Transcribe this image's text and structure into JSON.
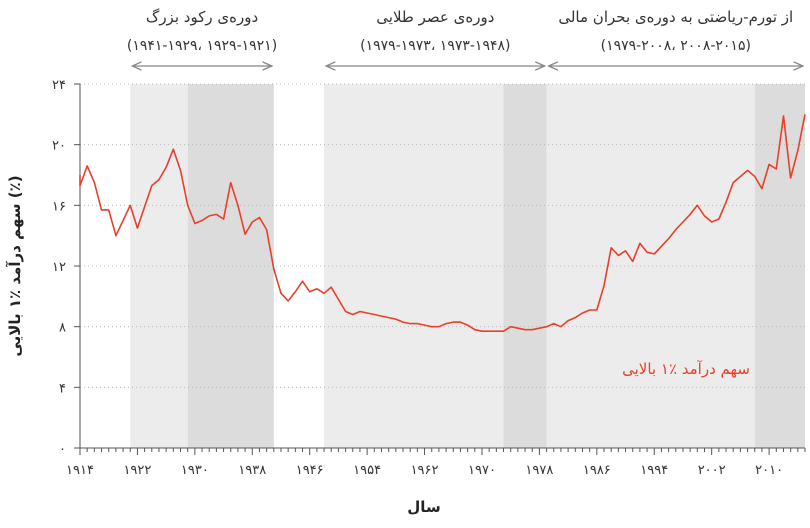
{
  "chart_data": {
    "type": "line",
    "xlabel": "سال",
    "ylabel": "سهم درآمد ٪۱ بالایی (٪)",
    "xlim": [
      1914,
      2015
    ],
    "ylim": [
      0,
      24
    ],
    "x_ticks": [
      1914,
      1922,
      1930,
      1938,
      1946,
      1954,
      1962,
      1970,
      1978,
      1986,
      1994,
      2002,
      2010
    ],
    "x_tick_labels": [
      "۱۹۱۴",
      "۱۹۲۲",
      "۱۹۳۰",
      "۱۹۳۸",
      "۱۹۴۶",
      "۱۹۵۴",
      "۱۹۶۲",
      "۱۹۷۰",
      "۱۹۷۸",
      "۱۹۸۶",
      "۱۹۹۴",
      "۲۰۰۲",
      "۲۰۱۰"
    ],
    "y_ticks": [
      0,
      4,
      8,
      12,
      16,
      20,
      24
    ],
    "y_tick_labels": [
      "۰",
      "۴",
      "۸",
      "۱۲",
      "۱۶",
      "۲۰",
      "۲۴"
    ],
    "grid": "horizontal",
    "shaded_periods": [
      {
        "from": 1921,
        "to": 1929,
        "shade": "light"
      },
      {
        "from": 1929,
        "to": 1941,
        "shade": "dark"
      },
      {
        "from": 1948,
        "to": 1973,
        "shade": "light"
      },
      {
        "from": 1973,
        "to": 1979,
        "shade": "dark"
      },
      {
        "from": 1979,
        "to": 2008,
        "shade": "light"
      },
      {
        "from": 2008,
        "to": 2015,
        "shade": "dark"
      }
    ],
    "periods": [
      {
        "title": "دوره‌ی رکود بزرگ",
        "range": "(۱۹۴۱-۱۹۲۹، ۱۹۲۹-۱۹۲۱)",
        "from": 1921,
        "to": 1941
      },
      {
        "title": "دوره‌ی عصر طلایی",
        "range": "(۱۹۷۹-۱۹۷۳، ۱۹۷۳-۱۹۴۸)",
        "from": 1948,
        "to": 1979
      },
      {
        "title": "از تورم-ریاضتی به دوره‌ی بحران مالی",
        "range": "(۱۹۷۹-۲۰۰۸، ۲۰۰۸-۲۰۱۵)",
        "from": 1979,
        "to": 2015
      }
    ],
    "series": [
      {
        "name": "سهم درآمد ٪۱ بالایی",
        "color": "#e8402a",
        "x": [
          1913,
          1914,
          1915,
          1916,
          1917,
          1918,
          1919,
          1920,
          1921,
          1922,
          1923,
          1924,
          1925,
          1926,
          1927,
          1928,
          1929,
          1930,
          1931,
          1932,
          1933,
          1934,
          1935,
          1936,
          1937,
          1938,
          1939,
          1940,
          1941,
          1942,
          1943,
          1944,
          1945,
          1946,
          1947,
          1948,
          1949,
          1950,
          1951,
          1952,
          1953,
          1954,
          1955,
          1956,
          1957,
          1958,
          1959,
          1960,
          1961,
          1962,
          1963,
          1964,
          1965,
          1966,
          1967,
          1968,
          1969,
          1970,
          1971,
          1972,
          1973,
          1974,
          1975,
          1976,
          1977,
          1978,
          1979,
          1980,
          1981,
          1982,
          1983,
          1984,
          1985,
          1986,
          1987,
          1988,
          1989,
          1990,
          1991,
          1992,
          1993,
          1994,
          1995,
          1996,
          1997,
          1998,
          1999,
          2000,
          2001,
          2002,
          2003,
          2004,
          2005,
          2006,
          2007,
          2008,
          2009,
          2010,
          2011,
          2012,
          2013,
          2014,
          2015
        ],
        "values": [
          18.0,
          17.3,
          18.6,
          17.5,
          15.7,
          15.7,
          14.0,
          15.0,
          16.0,
          14.5,
          15.9,
          17.3,
          17.7,
          18.5,
          19.7,
          18.3,
          16.0,
          14.8,
          15.0,
          15.3,
          15.4,
          15.1,
          17.5,
          16.0,
          14.1,
          14.9,
          15.2,
          14.4,
          11.8,
          10.2,
          9.7,
          10.3,
          11.0,
          10.3,
          10.5,
          10.2,
          10.6,
          9.8,
          9.0,
          8.8,
          9.0,
          8.9,
          8.8,
          8.7,
          8.6,
          8.5,
          8.3,
          8.2,
          8.2,
          8.1,
          8.0,
          8.0,
          8.2,
          8.3,
          8.3,
          8.1,
          7.8,
          7.7,
          7.7,
          7.7,
          7.7,
          8.0,
          7.9,
          7.8,
          7.8,
          7.9,
          8.0,
          8.2,
          8.0,
          8.4,
          8.6,
          8.9,
          9.1,
          9.1,
          10.7,
          13.2,
          12.7,
          13.0,
          12.3,
          13.5,
          12.9,
          12.8,
          13.3,
          13.8,
          14.4,
          14.9,
          15.4,
          16.0,
          15.3,
          14.9,
          15.1,
          16.2,
          17.5,
          17.9,
          18.3,
          17.9,
          17.1,
          18.7,
          18.4,
          21.9,
          17.8,
          19.6,
          22.0
        ]
      }
    ]
  }
}
